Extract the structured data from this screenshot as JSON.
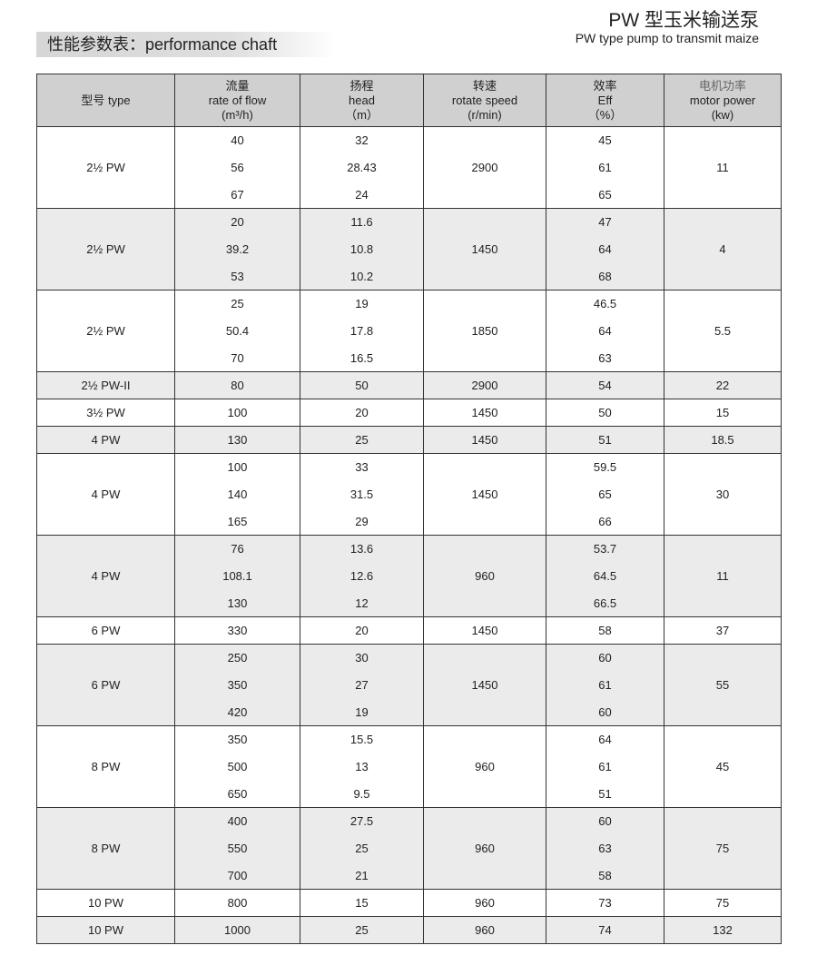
{
  "header": {
    "title_cn": "PW 型玉米输送泵",
    "title_en": "PW type pump to transmit maize",
    "section": "性能参数表：performance chaft"
  },
  "columns": [
    [
      "型号  type"
    ],
    [
      "流量",
      "rate of flow",
      "(m³/h)"
    ],
    [
      "扬程",
      "head",
      "（m）"
    ],
    [
      "转速",
      "rotate speed",
      "(r/min)"
    ],
    [
      "效率",
      "Eff",
      "（%）"
    ],
    [
      "电机功率",
      "motor power",
      "(kw)"
    ]
  ],
  "rows": [
    {
      "type": "2½ PW",
      "flow": [
        "40",
        "56",
        "67"
      ],
      "head": [
        "32",
        "28.43",
        "24"
      ],
      "speed": "2900",
      "eff": [
        "45",
        "61",
        "65"
      ],
      "power": "11"
    },
    {
      "type": "2½ PW",
      "flow": [
        "20",
        "39.2",
        "53"
      ],
      "head": [
        "11.6",
        "10.8",
        "10.2"
      ],
      "speed": "1450",
      "eff": [
        "47",
        "64",
        "68"
      ],
      "power": "4"
    },
    {
      "type": "2½ PW",
      "flow": [
        "25",
        "50.4",
        "70"
      ],
      "head": [
        "19",
        "17.8",
        "16.5"
      ],
      "speed": "1850",
      "eff": [
        "46.5",
        "64",
        "63"
      ],
      "power": "5.5"
    },
    {
      "type": "2½ PW-II",
      "flow": [
        "80"
      ],
      "head": [
        "50"
      ],
      "speed": "2900",
      "eff": [
        "54"
      ],
      "power": "22"
    },
    {
      "type": "3½ PW",
      "flow": [
        "100"
      ],
      "head": [
        "20"
      ],
      "speed": "1450",
      "eff": [
        "50"
      ],
      "power": "15"
    },
    {
      "type": "4 PW",
      "flow": [
        "130"
      ],
      "head": [
        "25"
      ],
      "speed": "1450",
      "eff": [
        "51"
      ],
      "power": "18.5"
    },
    {
      "type": "4 PW",
      "flow": [
        "100",
        "140",
        "165"
      ],
      "head": [
        "33",
        "31.5",
        "29"
      ],
      "speed": "1450",
      "eff": [
        "59.5",
        "65",
        "66"
      ],
      "power": "30"
    },
    {
      "type": "4 PW",
      "flow": [
        "76",
        "108.1",
        "130"
      ],
      "head": [
        "13.6",
        "12.6",
        "12"
      ],
      "speed": "960",
      "eff": [
        "53.7",
        "64.5",
        "66.5"
      ],
      "power": "11"
    },
    {
      "type": "6 PW",
      "flow": [
        "330"
      ],
      "head": [
        "20"
      ],
      "speed": "1450",
      "eff": [
        "58"
      ],
      "power": "37"
    },
    {
      "type": "6 PW",
      "flow": [
        "250",
        "350",
        "420"
      ],
      "head": [
        "30",
        "27",
        "19"
      ],
      "speed": "1450",
      "eff": [
        "60",
        "61",
        "60"
      ],
      "power": "55"
    },
    {
      "type": "8 PW",
      "flow": [
        "350",
        "500",
        "650"
      ],
      "head": [
        "15.5",
        "13",
        "9.5"
      ],
      "speed": "960",
      "eff": [
        "64",
        "61",
        "51"
      ],
      "power": "45"
    },
    {
      "type": "8 PW",
      "flow": [
        "400",
        "550",
        "700"
      ],
      "head": [
        "27.5",
        "25",
        "21"
      ],
      "speed": "960",
      "eff": [
        "60",
        "63",
        "58"
      ],
      "power": "75"
    },
    {
      "type": "10 PW",
      "flow": [
        "800"
      ],
      "head": [
        "15"
      ],
      "speed": "960",
      "eff": [
        "73"
      ],
      "power": "75"
    },
    {
      "type": "10 PW",
      "flow": [
        "1000"
      ],
      "head": [
        "25"
      ],
      "speed": "960",
      "eff": [
        "74"
      ],
      "power": "132"
    }
  ]
}
